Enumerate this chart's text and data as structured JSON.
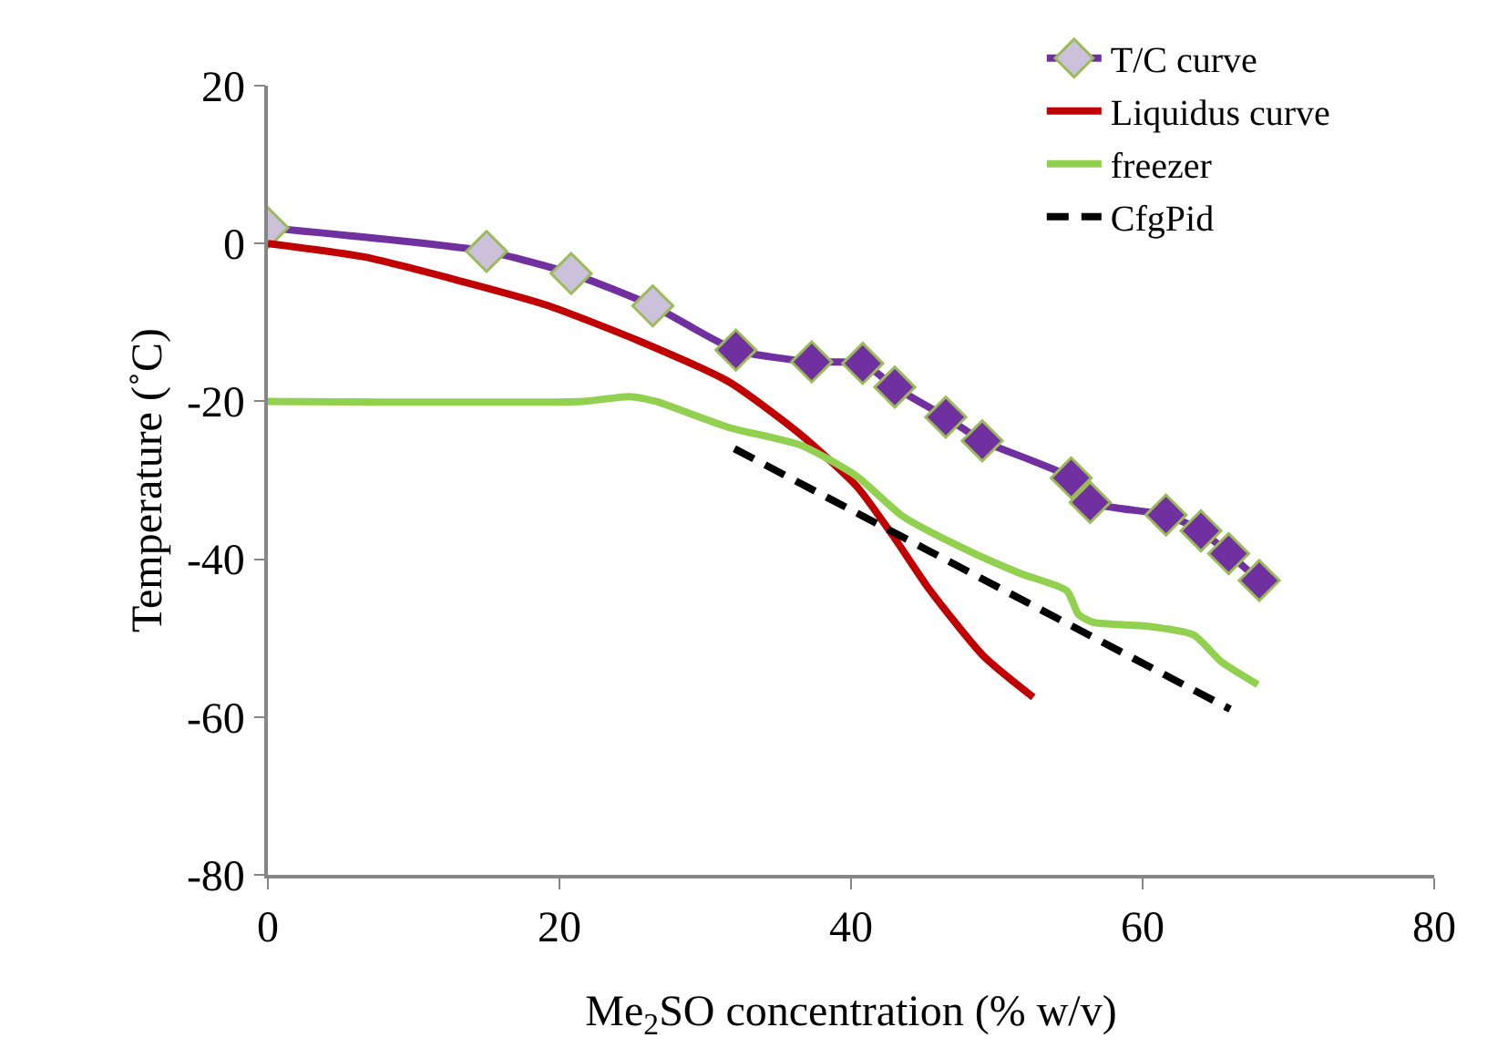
{
  "chart_data": {
    "type": "line",
    "xlabel": "Me$_{2}$SO concentration (% w/v)",
    "ylabel": "Temperature (˚C)",
    "xlim": [
      0,
      80
    ],
    "xticks": [
      0,
      20,
      40,
      60,
      80
    ],
    "ylim": [
      -80,
      20
    ],
    "yticks": [
      -80,
      -60,
      -40,
      -20,
      0,
      20
    ],
    "grid": false,
    "legend": "top right",
    "series": [
      {
        "name": "T/C curve",
        "color": "#7030a0",
        "marker": "diamond",
        "colors": [
          "#ccc1da",
          "#ccc1da",
          "#ccc1da",
          "#ccc1da",
          "#7030a0",
          "#7030a0",
          "#7030a0",
          "#7030a0",
          "#7030a0",
          "#7030a0",
          "#7030a0",
          "#7030a0",
          "#7030a0",
          "#7030a0",
          "#7030a0",
          "#7030a0"
        ],
        "x": [
          0,
          15,
          20.8,
          26.4,
          32.1,
          37.3,
          40.8,
          43,
          46.5,
          49,
          55.1,
          56.4,
          61.6,
          64,
          65.9,
          68
        ],
        "values": [
          2,
          -1,
          -3.8,
          -7.9,
          -13.5,
          -15,
          -15.2,
          -18.2,
          -22,
          -25,
          -29.7,
          -32.8,
          -34.4,
          -36.4,
          -39.3,
          -42.7
        ]
      },
      {
        "name": "Liquidus curve",
        "color": "#c00000",
        "marker": "none",
        "x": [
          0,
          6.6,
          12.9,
          19.1,
          25.4,
          31.6,
          36.6,
          40.4,
          42.9,
          45.4,
          49.1,
          52.5
        ],
        "values": [
          0,
          -1.7,
          -4.6,
          -7.8,
          -12.3,
          -17.5,
          -24.3,
          -30.8,
          -37.1,
          -43.9,
          -52.3,
          -57.5
        ]
      },
      {
        "name": "freezer",
        "color": "#92d050",
        "marker": "none",
        "x": [
          0,
          21.6,
          24.8,
          26.6,
          31.6,
          36.6,
          40.4,
          43.5,
          47.9,
          51.6,
          54.8,
          55.6,
          56.6,
          60.4,
          63.5,
          65.4,
          67.9
        ],
        "values": [
          -20,
          -20,
          -19.4,
          -20,
          -23.3,
          -25.6,
          -29.5,
          -34.5,
          -38.8,
          -41.8,
          -44,
          -47,
          -48,
          -48.5,
          -49.6,
          -53,
          -55.9
        ]
      },
      {
        "name": "CfgPid",
        "color": "#000000",
        "marker": "none",
        "line_style": "dashed",
        "x": [
          32,
          66
        ],
        "values": [
          -26,
          -59
        ]
      }
    ]
  }
}
